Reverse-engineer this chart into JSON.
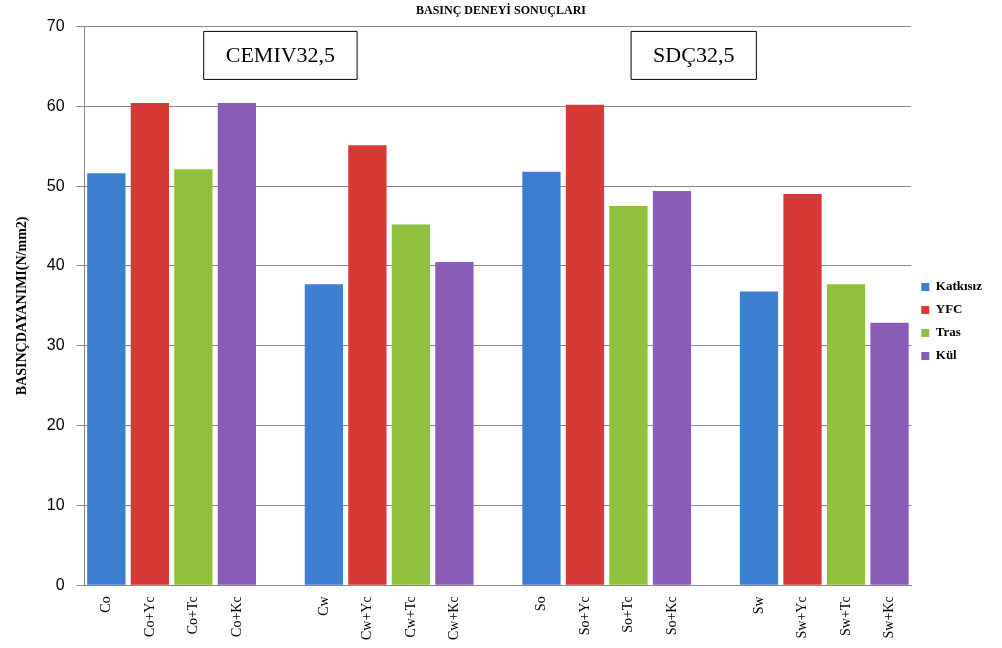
{
  "chart_data": {
    "type": "bar",
    "title": "BASINÇ DENEYİ SONUÇLARI",
    "ylabel": "BASINÇDAYANIMI(N/mm2)",
    "categories": [
      "Co",
      "Co+Yc",
      "Co+Tc",
      "Co+Kc",
      null,
      "Cw",
      "Cw+Yc",
      "Cw+Tc",
      "Cw+Kc",
      null,
      "So",
      "So+Yc",
      "So+Tc",
      "So+Kc",
      null,
      "Sw",
      "Sw+Yc",
      "Sw+Tc",
      "Sw+Kc"
    ],
    "series": [
      {
        "name": "Katkısız",
        "color": "#3c7fd0",
        "values": [
          51.6,
          null,
          null,
          null,
          null,
          37.7,
          null,
          null,
          null,
          null,
          51.8,
          null,
          null,
          null,
          null,
          36.8,
          null,
          null,
          null
        ]
      },
      {
        "name": "YFC",
        "color": "#d63a36",
        "values": [
          null,
          60.4,
          null,
          null,
          null,
          null,
          55.1,
          null,
          null,
          null,
          null,
          60.2,
          null,
          null,
          null,
          null,
          49,
          null,
          null
        ]
      },
      {
        "name": "Tras",
        "color": "#8fc13c",
        "values": [
          null,
          null,
          52.1,
          null,
          null,
          null,
          null,
          45.2,
          null,
          null,
          null,
          null,
          47.5,
          null,
          null,
          null,
          null,
          37.7,
          null
        ]
      },
      {
        "name": "Kül",
        "color": "#8a5cb8",
        "values": [
          null,
          null,
          null,
          60.4,
          null,
          null,
          null,
          null,
          40.5,
          null,
          null,
          null,
          null,
          49.4,
          null,
          null,
          null,
          null,
          32.9
        ]
      }
    ],
    "stacked": true,
    "ylim": [
      0,
      70
    ],
    "yticks": [
      0,
      10,
      20,
      30,
      40,
      50,
      60,
      70
    ],
    "grid": "y",
    "legend": "right",
    "annotations": [
      "CEMIV32,5",
      "SDÇ32,5"
    ]
  }
}
